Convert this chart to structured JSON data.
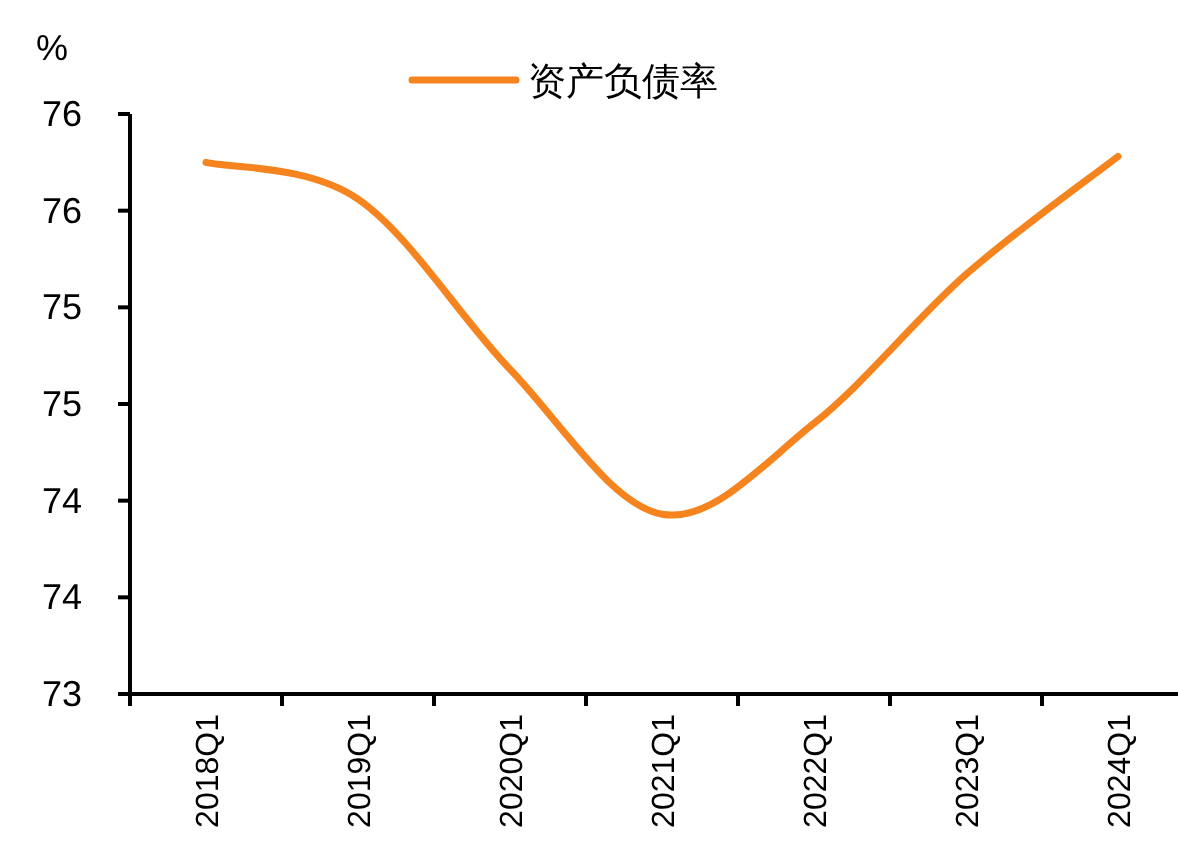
{
  "chart_data": {
    "type": "line",
    "ylabel": "%",
    "legend": "top",
    "categories": [
      "2018Q1",
      "2019Q1",
      "2020Q1",
      "2021Q1",
      "2022Q1",
      "2023Q1",
      "2024Q1"
    ],
    "series": [
      {
        "name": "资产负债率",
        "color": "#f5841f",
        "values": [
          75.75,
          75.56,
          74.68,
          73.93,
          74.4,
          75.17,
          75.78
        ]
      }
    ],
    "ylim": [
      73,
      76
    ],
    "yticks": [
      73,
      {
        "value": 73.5,
        "label": "74"
      },
      74,
      {
        "value": 74.5,
        "label": "75"
      },
      75,
      {
        "value": 75.5,
        "label": "76"
      },
      76
    ],
    "grid": false,
    "marker": "none",
    "line_style": "solid"
  }
}
